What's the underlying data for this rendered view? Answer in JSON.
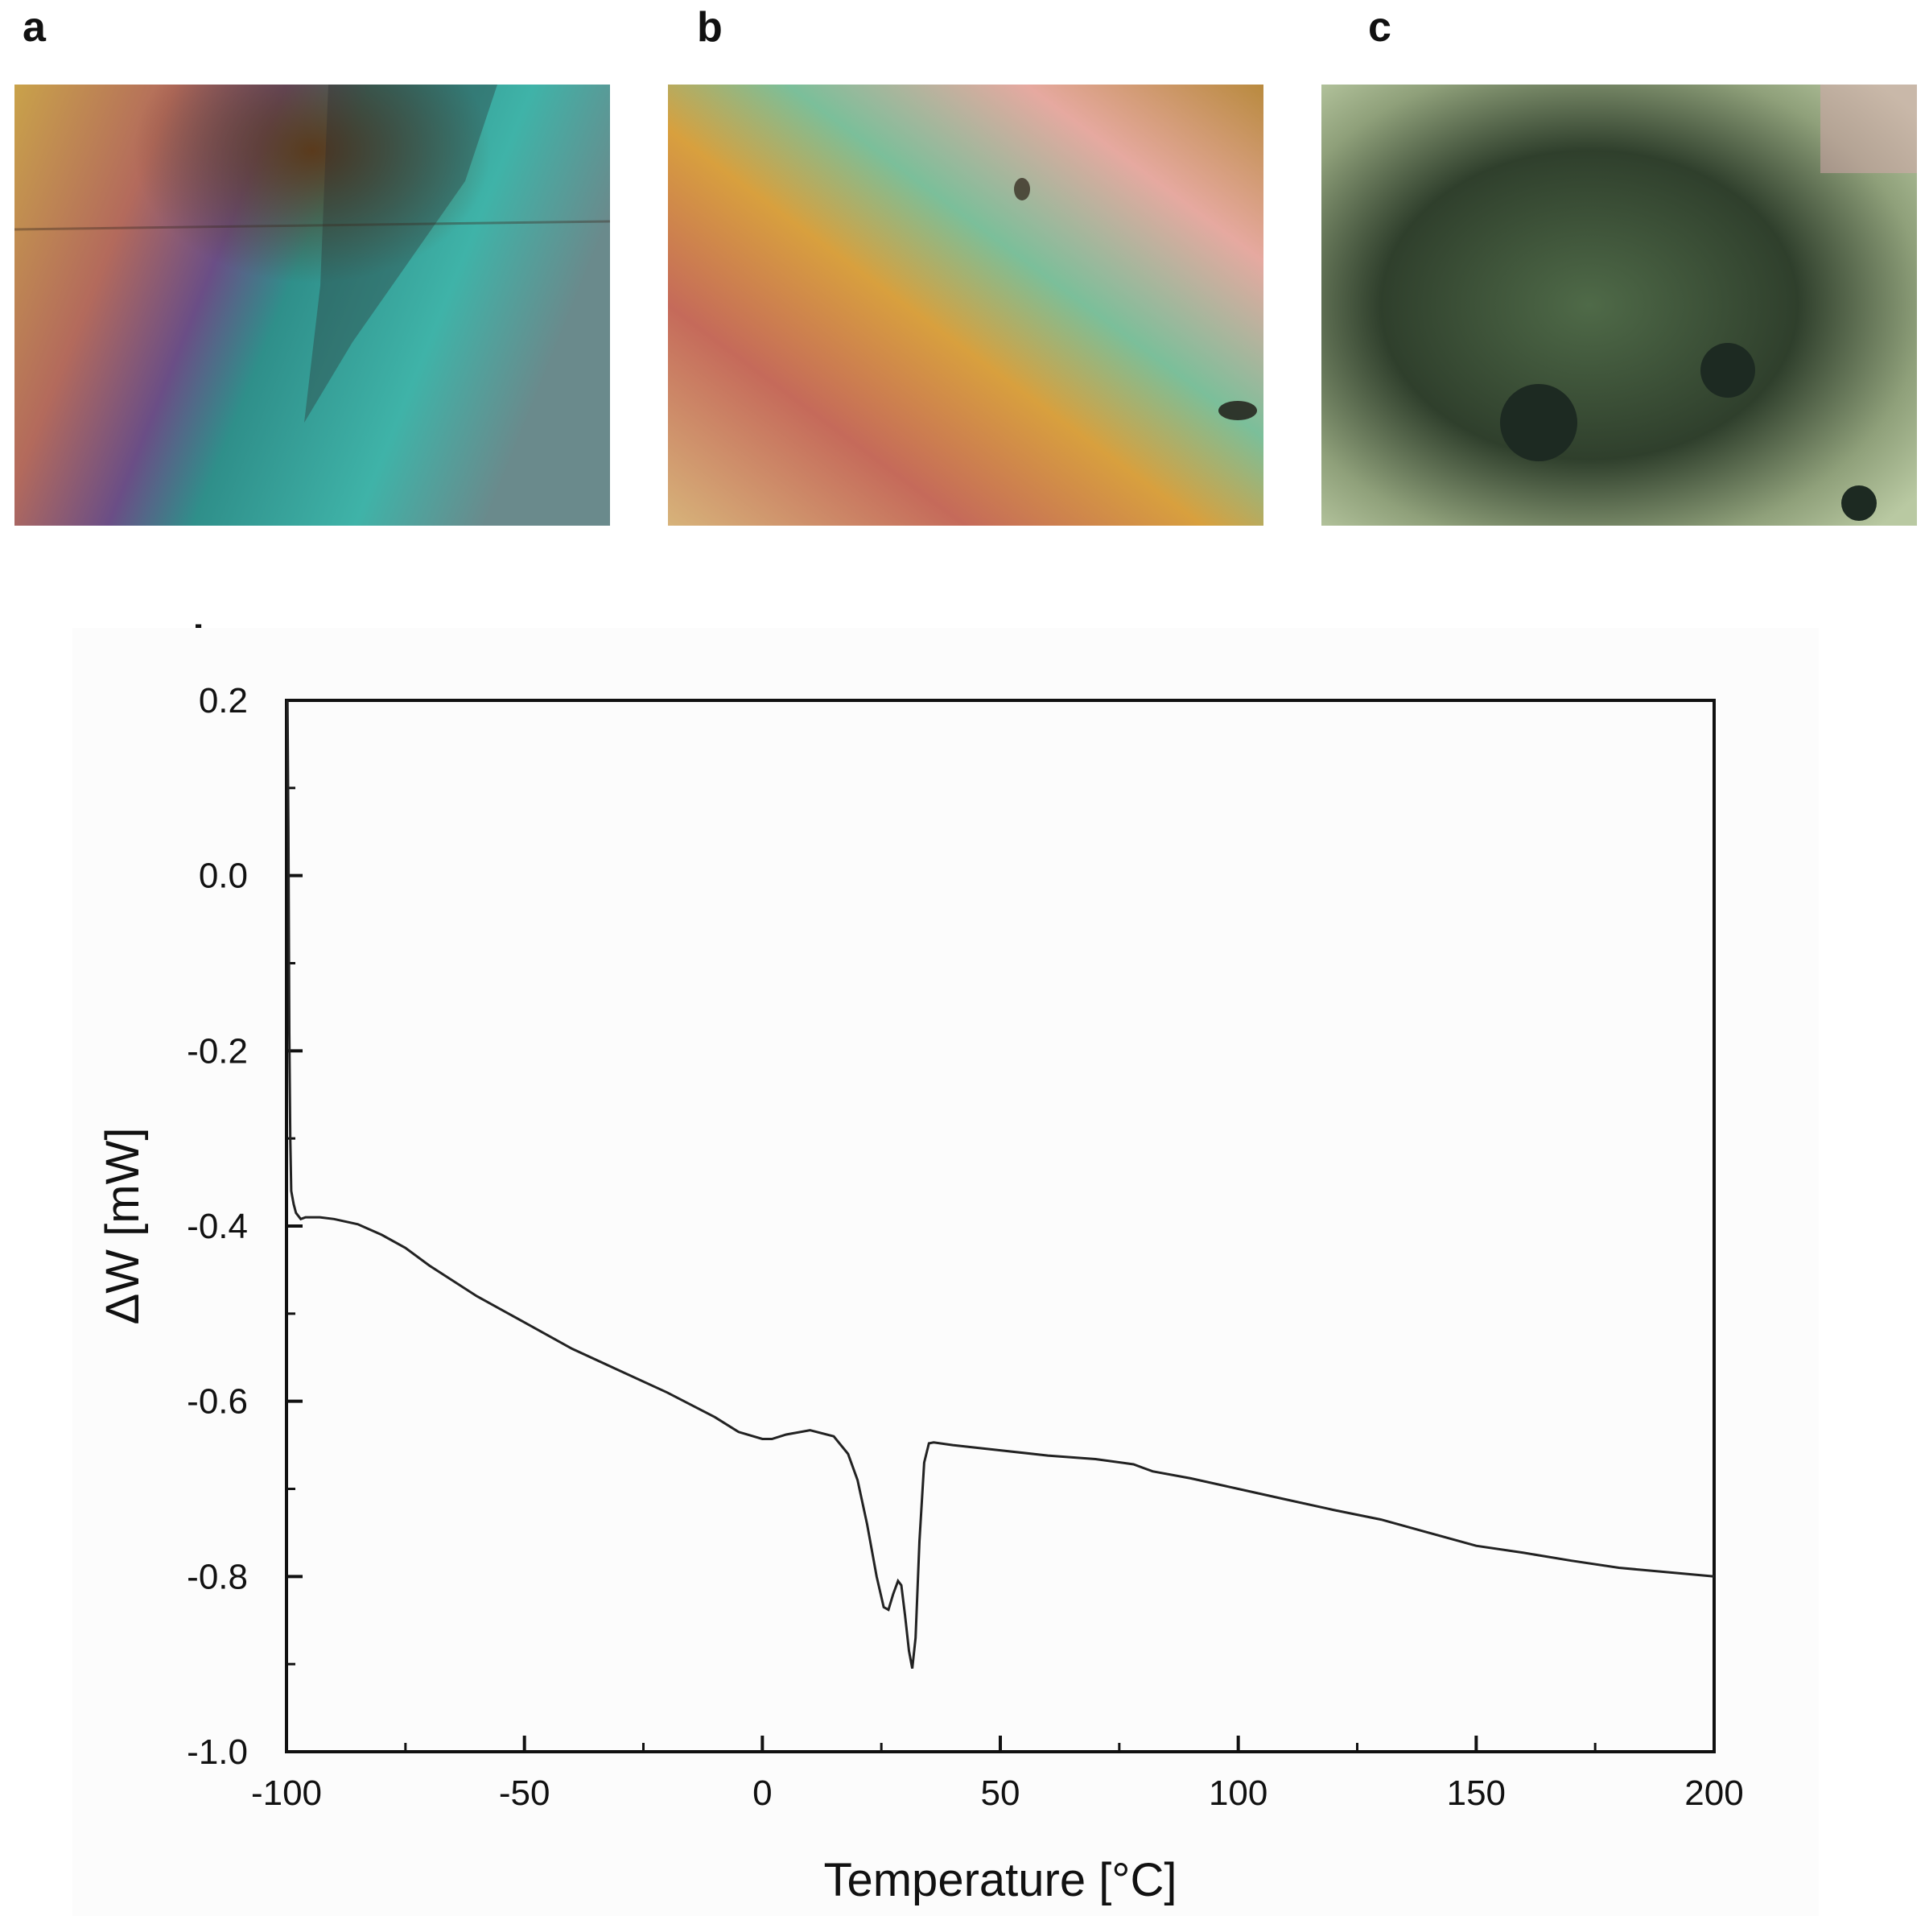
{
  "panels": {
    "a": "a",
    "b": "b",
    "c": "c",
    "d": "d"
  },
  "micrographs": {
    "a": {
      "colors": [
        "#c9a24a",
        "#b36a5c",
        "#6a4e86",
        "#2f8f8a",
        "#3fb3a8",
        "#6a8a8c"
      ]
    },
    "b": {
      "colors": [
        "#d7b37a",
        "#c56a5a",
        "#d8a03e",
        "#7bbf9a",
        "#e6a9a0",
        "#b98a3e"
      ]
    },
    "c": {
      "colors": [
        "#2f3f2c",
        "#4f6a48",
        "#8fa07a",
        "#b9c9a2",
        "#d9a8b0",
        "#1d2a22"
      ]
    }
  },
  "chart_data": {
    "type": "line",
    "xlabel": "Temperature [°C]",
    "ylabel": "ΔW [mW]",
    "xlim": [
      -100,
      200
    ],
    "ylim": [
      -1.0,
      0.2
    ],
    "xticks": [
      -100,
      -50,
      0,
      50,
      100,
      150,
      200
    ],
    "xtick_labels": [
      "-100",
      "-50",
      "0",
      "50",
      "100",
      "150",
      "200"
    ],
    "yticks": [
      -1.0,
      -0.8,
      -0.6,
      -0.4,
      -0.2,
      0.0,
      0.2
    ],
    "ytick_labels": [
      "-1.0",
      "-0.8",
      "-0.6",
      "-0.4",
      "-0.2",
      "0.0",
      "0.2"
    ],
    "grid": false,
    "line_color": "#222222",
    "series": [
      {
        "x": [
          -99.8,
          -99.6,
          -99.4,
          -99.2,
          -99.0,
          -98.5,
          -98.0,
          -97.0,
          -96.0,
          -95.0,
          -93.0,
          -90.0,
          -85.0,
          -80.0,
          -75.0,
          -70.0,
          -60.0,
          -50.0,
          -40.0,
          -30.0,
          -20.0,
          -10.0,
          -5.0,
          0.0,
          2.0,
          5.0,
          10.0,
          15.0,
          18.0,
          20.0,
          22.0,
          24.0,
          25.5,
          26.5,
          27.5,
          28.5,
          29.2,
          30.0,
          30.8,
          31.5,
          32.2,
          33.0,
          34.0,
          35.0,
          36.0,
          40.0,
          50.0,
          60.0,
          70.0,
          78.0,
          80.0,
          82.0,
          90.0,
          100.0,
          110.0,
          120.0,
          130.0,
          140.0,
          150.0,
          160.0,
          170.0,
          180.0,
          190.0,
          200.0
        ],
        "y": [
          0.2,
          0.05,
          -0.18,
          -0.3,
          -0.36,
          -0.375,
          -0.385,
          -0.392,
          -0.39,
          -0.39,
          -0.39,
          -0.392,
          -0.398,
          -0.41,
          -0.425,
          -0.445,
          -0.48,
          -0.51,
          -0.54,
          -0.565,
          -0.59,
          -0.618,
          -0.635,
          -0.643,
          -0.643,
          -0.638,
          -0.633,
          -0.64,
          -0.66,
          -0.69,
          -0.74,
          -0.8,
          -0.835,
          -0.838,
          -0.82,
          -0.805,
          -0.81,
          -0.845,
          -0.885,
          -0.905,
          -0.87,
          -0.76,
          -0.67,
          -0.648,
          -0.647,
          -0.65,
          -0.656,
          -0.662,
          -0.666,
          -0.672,
          -0.676,
          -0.68,
          -0.688,
          -0.7,
          -0.712,
          -0.724,
          -0.735,
          -0.75,
          -0.765,
          -0.773,
          -0.782,
          -0.79,
          -0.795,
          -0.8
        ]
      }
    ]
  }
}
